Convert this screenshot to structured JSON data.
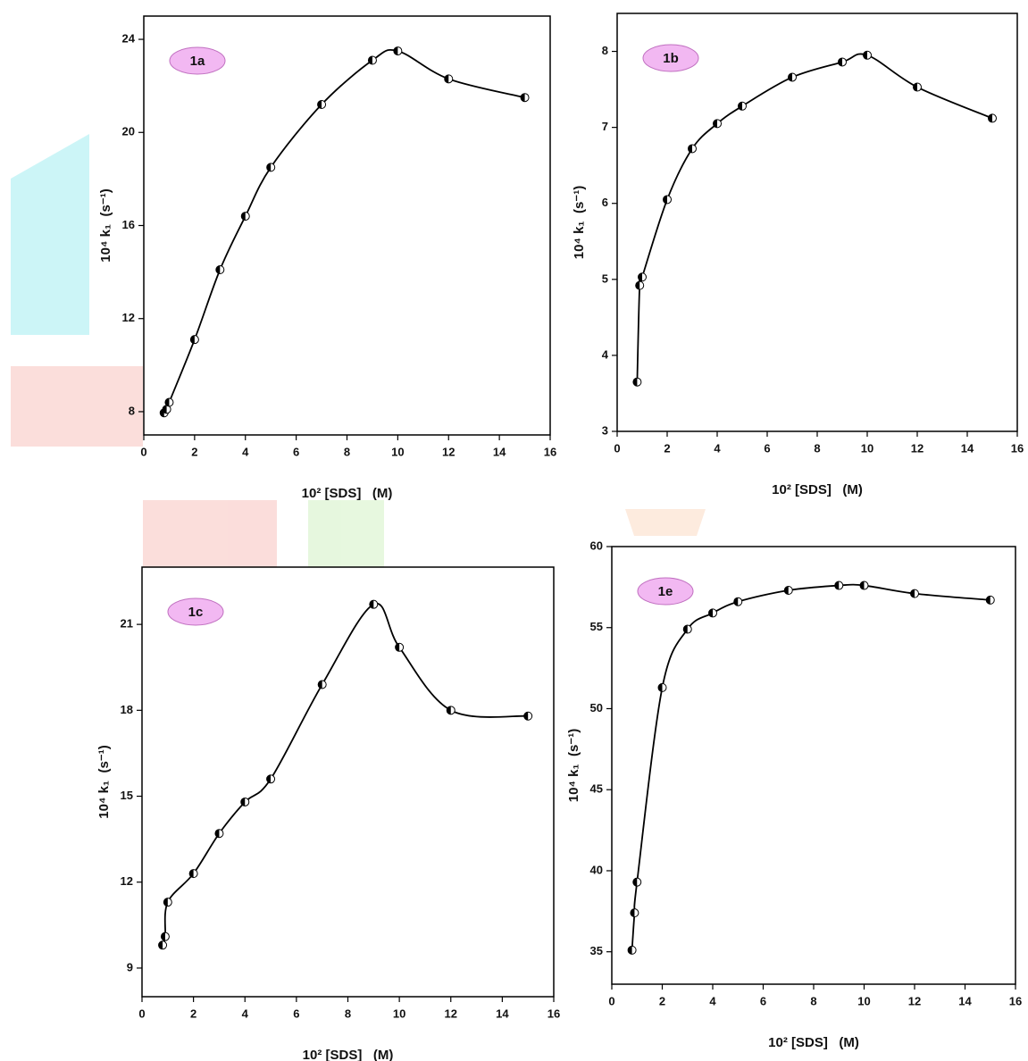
{
  "chart_data": [
    {
      "type": "line",
      "panel_label": "1a",
      "x_label": "10² [SDS]   (M)",
      "y_label": "10⁴ k₁  (s⁻¹)",
      "color": "#000000",
      "x": [
        0.8,
        0.9,
        1,
        2,
        3,
        4,
        5,
        7,
        9,
        10,
        12,
        15
      ],
      "values": [
        7.95,
        8.1,
        8.4,
        11.1,
        14.1,
        16.4,
        18.5,
        21.2,
        23.1,
        23.5,
        22.3,
        21.5
      ],
      "xlim": [
        0,
        16
      ],
      "xticks": [
        0,
        2,
        4,
        6,
        8,
        10,
        12,
        14,
        16
      ],
      "ylim": [
        7,
        25
      ],
      "yticks": [
        8,
        12,
        16,
        20,
        24
      ]
    },
    {
      "type": "line",
      "panel_label": "1b",
      "x_label": "10² [SDS]   (M)",
      "y_label": "10⁴ k₁  (s⁻¹)",
      "color": "#000000",
      "x": [
        0.8,
        0.9,
        1,
        2,
        3,
        4,
        5,
        7,
        9,
        10,
        12,
        15
      ],
      "values": [
        3.65,
        4.92,
        5.03,
        6.05,
        6.72,
        7.05,
        7.28,
        7.66,
        7.86,
        7.95,
        7.53,
        7.12
      ],
      "xlim": [
        0,
        16
      ],
      "xticks": [
        0,
        2,
        4,
        6,
        8,
        10,
        12,
        14,
        16
      ],
      "ylim": [
        3,
        8.5
      ],
      "yticks": [
        3,
        4,
        5,
        6,
        7,
        8
      ]
    },
    {
      "type": "line",
      "panel_label": "1c",
      "x_label": "10² [SDS]   (M)",
      "y_label": "10⁴ k₁  (s⁻¹)",
      "color": "#000000",
      "x": [
        0.8,
        0.9,
        1,
        2,
        3,
        4,
        5,
        7,
        9,
        10,
        12,
        15
      ],
      "values": [
        9.8,
        10.1,
        11.3,
        12.3,
        13.7,
        14.8,
        15.6,
        18.9,
        21.7,
        20.2,
        18.0,
        17.8
      ],
      "xlim": [
        0,
        16
      ],
      "xticks": [
        0,
        2,
        4,
        6,
        8,
        10,
        12,
        14,
        16
      ],
      "ylim": [
        8,
        23
      ],
      "yticks": [
        9,
        12,
        15,
        18,
        21
      ]
    },
    {
      "type": "line",
      "panel_label": "1e",
      "x_label": "10² [SDS]   (M)",
      "y_label": "10⁴ k₁  (s⁻¹)",
      "color": "#000000",
      "x": [
        0.8,
        0.9,
        1,
        2,
        3,
        4,
        5,
        7,
        9,
        10,
        12,
        15
      ],
      "values": [
        35.1,
        37.4,
        39.3,
        51.3,
        54.9,
        55.9,
        56.6,
        57.3,
        57.6,
        57.6,
        57.1,
        56.7
      ],
      "xlim": [
        0,
        16
      ],
      "xticks": [
        0,
        2,
        4,
        6,
        8,
        10,
        12,
        14,
        16
      ],
      "ylim": [
        33,
        60
      ],
      "yticks": [
        35,
        40,
        45,
        50,
        55,
        60
      ]
    }
  ]
}
